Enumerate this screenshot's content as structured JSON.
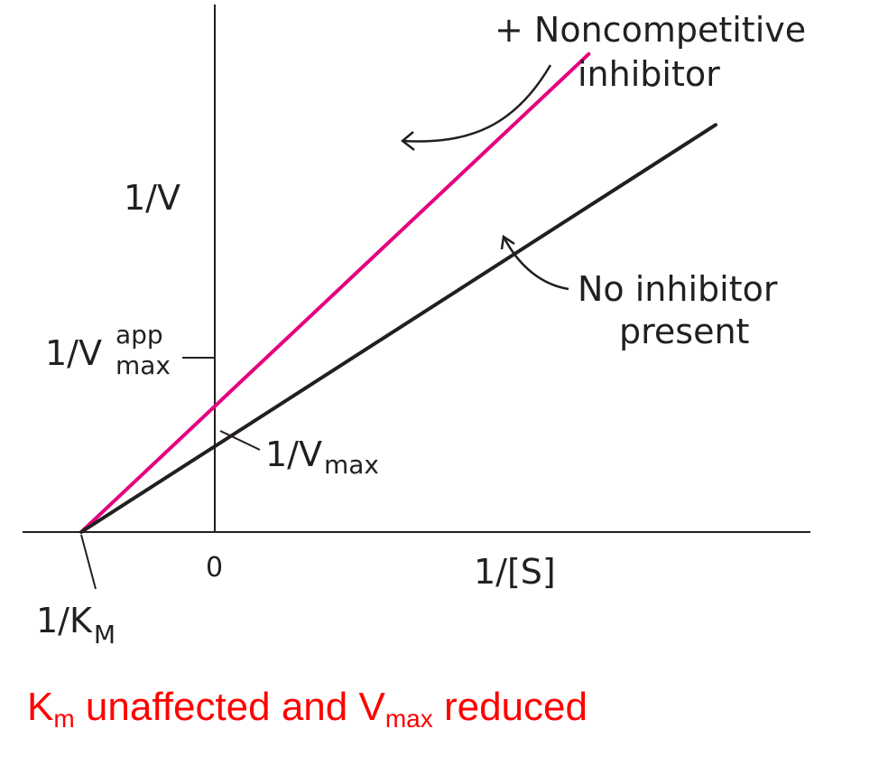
{
  "chart_data": {
    "type": "line",
    "title": "",
    "xlabel": "1/[S]",
    "ylabel": "1/V",
    "x_tick_labels": [
      "0"
    ],
    "grid": false,
    "series": [
      {
        "name": "+ Noncompetitive inhibitor",
        "color": "#e5007e",
        "points": [
          [
            -1,
            0
          ],
          [
            2.8,
            5.4
          ]
        ]
      },
      {
        "name": "No inhibitor present",
        "color": "#231f20",
        "points": [
          [
            -1,
            0
          ],
          [
            3.75,
            4.6
          ]
        ]
      }
    ],
    "annotations": {
      "vmax_app": {
        "base": "1/V",
        "sup": "app",
        "sub": "max"
      },
      "vmax": {
        "base": "1/V",
        "sub": "max"
      },
      "km": {
        "base": "1/K",
        "sub": "M"
      },
      "series1_line1": "+ Noncompetitive",
      "series1_line2": "inhibitor",
      "series2_line1": "No inhibitor",
      "series2_line2": "present"
    }
  },
  "caption": {
    "k": "K",
    "k_sub": "m",
    "mid": " unaffected and V",
    "v_sub": "max",
    "end": " reduced",
    "color": "#ff0000"
  }
}
